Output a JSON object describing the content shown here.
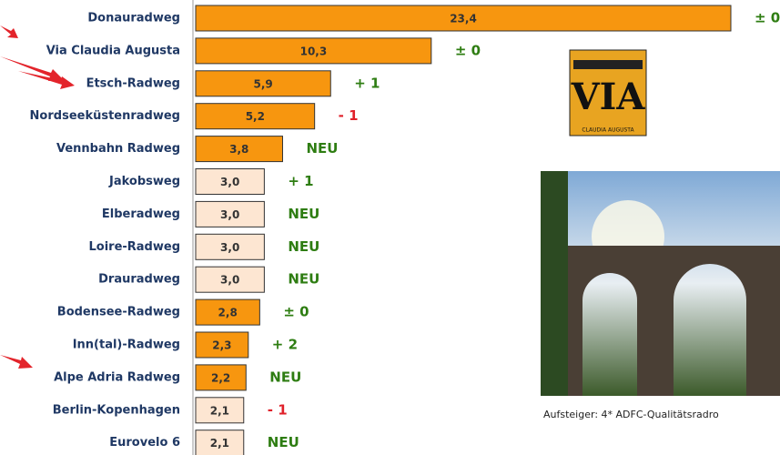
{
  "chart_data": {
    "type": "bar",
    "orientation": "horizontal",
    "categories": [
      "Donauradweg",
      "Via Claudia Augusta",
      "Etsch-Radweg",
      "Nordseeküstenradweg",
      "Vennbahn Radweg",
      "Jakobsweg",
      "Elberadweg",
      "Loire-Radweg",
      "Drauradweg",
      "Bodensee-Radweg",
      "Inn(tal)-Radweg",
      "Alpe Adria Radweg",
      "Berlin-Kopenhagen",
      "Eurovelo 6"
    ],
    "values": [
      23.4,
      10.3,
      5.9,
      5.2,
      3.8,
      3.0,
      3.0,
      3.0,
      3.0,
      2.8,
      2.3,
      2.2,
      2.1,
      2.1
    ],
    "value_labels": [
      "23,4",
      "10,3",
      "5,9",
      "5,2",
      "3,8",
      "3,0",
      "3,0",
      "3,0",
      "3,0",
      "2,8",
      "2,3",
      "2,2",
      "2,1",
      "2,1"
    ],
    "colors": [
      "#f7960f",
      "#f7960f",
      "#f7960f",
      "#f7960f",
      "#f7960f",
      "#fde6d2",
      "#fde6d2",
      "#fde6d2",
      "#fde6d2",
      "#f7960f",
      "#f7960f",
      "#f7960f",
      "#fde6d2",
      "#fde6d2"
    ],
    "changes": [
      "± 0",
      "± 0",
      "+ 1",
      "- 1",
      "NEU",
      "+ 1",
      "NEU",
      "NEU",
      "NEU",
      "± 0",
      "+ 2",
      "NEU",
      "- 1",
      "NEU"
    ],
    "change_colors": [
      "#2e7d12",
      "#2e7d12",
      "#2e7d12",
      "#e0202a",
      "#2e7d12",
      "#2e7d12",
      "#2e7d12",
      "#2e7d12",
      "#2e7d12",
      "#2e7d12",
      "#2e7d12",
      "#2e7d12",
      "#e0202a",
      "#2e7d12"
    ]
  },
  "logo": {
    "title": "VIA",
    "subtitle": "CLAUDIA AUGUSTA"
  },
  "caption": "Aufsteiger: 4* ADFC-Qualitätsradro"
}
